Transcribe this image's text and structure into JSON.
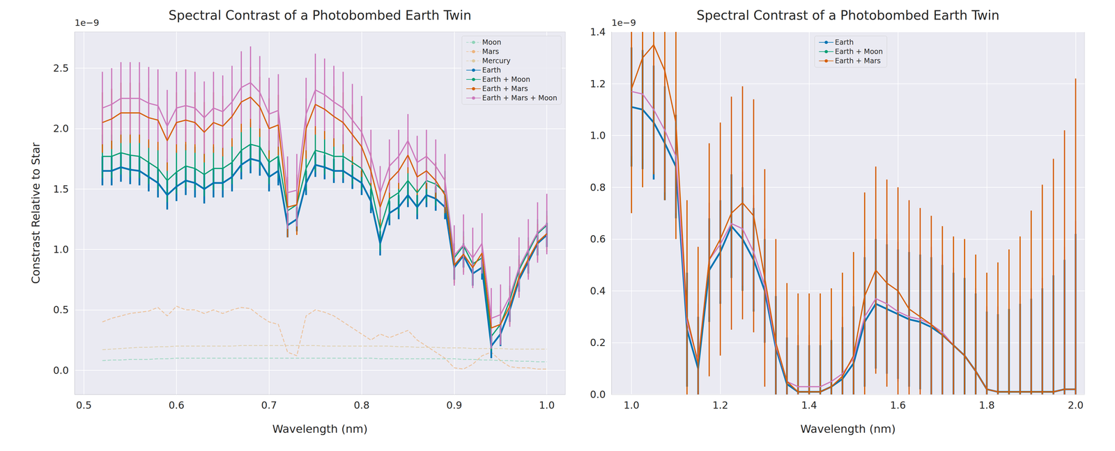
{
  "chart_data": [
    {
      "type": "line",
      "title": "Spectral Contrast of a Photobombed Earth Twin",
      "xlabel": "Wavelength (nm)",
      "ylabel": "Constrast Relative to Star",
      "annotations": [
        "1e−9"
      ],
      "grid": true,
      "legend": "upper right",
      "xlim": [
        0.49,
        1.02
      ],
      "ylim": [
        -0.2,
        2.8
      ],
      "xticks": [
        0.5,
        0.6,
        0.7,
        0.8,
        0.9,
        {
          "value": 1.0,
          "label": "1.0"
        }
      ],
      "yticks": [
        {
          "value": 0,
          "label": "0.0"
        },
        0.5,
        {
          "value": 1,
          "label": "1.0"
        },
        1.5,
        {
          "value": 2,
          "label": "2.0"
        },
        2.5
      ],
      "x": [
        0.52,
        0.53,
        0.54,
        0.55,
        0.56,
        0.57,
        0.58,
        0.59,
        0.6,
        0.61,
        0.62,
        0.63,
        0.64,
        0.65,
        0.66,
        0.67,
        0.68,
        0.69,
        0.7,
        0.71,
        0.72,
        0.73,
        0.74,
        0.75,
        0.76,
        0.77,
        0.78,
        0.79,
        0.8,
        0.81,
        0.82,
        0.83,
        0.84,
        0.85,
        0.86,
        0.87,
        0.88,
        0.89,
        0.9,
        0.91,
        0.92,
        0.93,
        0.94,
        0.95,
        0.96,
        0.97,
        0.98,
        0.99,
        1.0
      ],
      "series": [
        {
          "name": "Moon",
          "color": "#8fd3b8",
          "line_style": "dashed",
          "values": [
            0.08,
            0.085,
            0.085,
            0.09,
            0.09,
            0.09,
            0.095,
            0.095,
            0.1,
            0.1,
            0.1,
            0.1,
            0.1,
            0.1,
            0.1,
            0.1,
            0.1,
            0.1,
            0.1,
            0.1,
            0.1,
            0.1,
            0.1,
            0.1,
            0.1,
            0.1,
            0.1,
            0.1,
            0.1,
            0.1,
            0.095,
            0.095,
            0.095,
            0.095,
            0.095,
            0.095,
            0.095,
            0.095,
            0.095,
            0.09,
            0.09,
            0.085,
            0.085,
            0.08,
            0.08,
            0.075,
            0.075,
            0.07,
            0.07
          ]
        },
        {
          "name": "Mars",
          "color": "#ecb47e",
          "line_style": "dashed",
          "values": [
            0.4,
            0.43,
            0.45,
            0.47,
            0.48,
            0.49,
            0.52,
            0.45,
            0.53,
            0.5,
            0.5,
            0.47,
            0.5,
            0.47,
            0.5,
            0.52,
            0.51,
            0.45,
            0.4,
            0.38,
            0.15,
            0.12,
            0.45,
            0.5,
            0.48,
            0.45,
            0.4,
            0.35,
            0.3,
            0.25,
            0.3,
            0.27,
            0.3,
            0.33,
            0.25,
            0.2,
            0.15,
            0.1,
            0.02,
            0.01,
            0.05,
            0.12,
            0.15,
            0.08,
            0.03,
            0.02,
            0.02,
            0.01,
            0.01
          ]
        },
        {
          "name": "Mercury",
          "color": "#dcc9a0",
          "line_style": "dashed",
          "values": [
            0.17,
            0.175,
            0.18,
            0.185,
            0.19,
            0.19,
            0.195,
            0.195,
            0.2,
            0.2,
            0.2,
            0.2,
            0.2,
            0.2,
            0.2,
            0.205,
            0.205,
            0.205,
            0.205,
            0.205,
            0.205,
            0.205,
            0.205,
            0.205,
            0.2,
            0.2,
            0.2,
            0.2,
            0.2,
            0.2,
            0.2,
            0.2,
            0.195,
            0.195,
            0.19,
            0.19,
            0.19,
            0.185,
            0.185,
            0.185,
            0.18,
            0.18,
            0.18,
            0.18,
            0.175,
            0.175,
            0.175,
            0.175,
            0.175
          ]
        },
        {
          "name": "Earth",
          "color": "#0173b2",
          "line_style": "solid",
          "values": [
            1.65,
            1.65,
            1.68,
            1.66,
            1.65,
            1.6,
            1.55,
            1.45,
            1.52,
            1.57,
            1.55,
            1.5,
            1.55,
            1.55,
            1.6,
            1.7,
            1.75,
            1.73,
            1.6,
            1.65,
            1.2,
            1.25,
            1.55,
            1.7,
            1.68,
            1.65,
            1.65,
            1.6,
            1.55,
            1.4,
            1.05,
            1.3,
            1.35,
            1.45,
            1.35,
            1.45,
            1.42,
            1.35,
            0.85,
            0.95,
            0.8,
            0.85,
            0.2,
            0.3,
            0.5,
            0.75,
            0.9,
            1.05,
            1.12
          ],
          "errors": [
            0.12,
            0.12,
            0.12,
            0.12,
            0.12,
            0.12,
            0.12,
            0.12,
            0.12,
            0.12,
            0.12,
            0.12,
            0.12,
            0.12,
            0.12,
            0.12,
            0.12,
            0.12,
            0.12,
            0.12,
            0.1,
            0.1,
            0.1,
            0.1,
            0.1,
            0.1,
            0.1,
            0.1,
            0.1,
            0.1,
            0.1,
            0.1,
            0.1,
            0.1,
            0.1,
            0.1,
            0.1,
            0.1,
            0.1,
            0.1,
            0.1,
            0.1,
            0.1,
            0.1,
            0.1,
            0.1,
            0.1,
            0.1,
            0.1
          ]
        },
        {
          "name": "Earth + Moon",
          "color": "#029e73",
          "line_style": "solid",
          "values": [
            1.77,
            1.77,
            1.8,
            1.78,
            1.77,
            1.72,
            1.67,
            1.57,
            1.64,
            1.69,
            1.67,
            1.62,
            1.67,
            1.67,
            1.72,
            1.82,
            1.87,
            1.85,
            1.72,
            1.77,
            1.32,
            1.37,
            1.67,
            1.82,
            1.8,
            1.77,
            1.77,
            1.72,
            1.67,
            1.52,
            1.17,
            1.42,
            1.47,
            1.57,
            1.47,
            1.57,
            1.54,
            1.47,
            0.93,
            1.03,
            0.88,
            0.93,
            0.28,
            0.38,
            0.58,
            0.83,
            0.98,
            1.13,
            1.2
          ],
          "errors": [
            0.18,
            0.18,
            0.18,
            0.18,
            0.18,
            0.18,
            0.18,
            0.18,
            0.18,
            0.18,
            0.18,
            0.18,
            0.18,
            0.18,
            0.18,
            0.18,
            0.18,
            0.18,
            0.18,
            0.18,
            0.18,
            0.18,
            0.18,
            0.18,
            0.18,
            0.18,
            0.18,
            0.18,
            0.18,
            0.18,
            0.18,
            0.18,
            0.18,
            0.18,
            0.18,
            0.18,
            0.18,
            0.18,
            0.12,
            0.12,
            0.12,
            0.12,
            0.12,
            0.12,
            0.12,
            0.12,
            0.12,
            0.12,
            0.12
          ]
        },
        {
          "name": "Earth + Mars",
          "color": "#d55e00",
          "line_style": "solid",
          "values": [
            2.05,
            2.08,
            2.13,
            2.13,
            2.13,
            2.09,
            2.07,
            1.9,
            2.05,
            2.07,
            2.05,
            1.97,
            2.05,
            2.02,
            2.1,
            2.22,
            2.26,
            2.18,
            2.0,
            2.03,
            1.35,
            1.37,
            2.0,
            2.2,
            2.16,
            2.1,
            2.05,
            1.95,
            1.85,
            1.65,
            1.35,
            1.57,
            1.65,
            1.78,
            1.6,
            1.65,
            1.57,
            1.45,
            0.87,
            0.96,
            0.85,
            0.97,
            0.35,
            0.38,
            0.53,
            0.77,
            0.92,
            1.06,
            1.13
          ],
          "errors": [
            0.25,
            0.25,
            0.25,
            0.25,
            0.25,
            0.25,
            0.25,
            0.25,
            0.25,
            0.25,
            0.25,
            0.25,
            0.25,
            0.25,
            0.25,
            0.25,
            0.25,
            0.25,
            0.25,
            0.25,
            0.25,
            0.25,
            0.25,
            0.25,
            0.25,
            0.25,
            0.25,
            0.25,
            0.25,
            0.15,
            0.15,
            0.15,
            0.15,
            0.15,
            0.15,
            0.15,
            0.15,
            0.15,
            0.15,
            0.15,
            0.15,
            0.15,
            0.15,
            0.15,
            0.15,
            0.15,
            0.15,
            0.15,
            0.15
          ]
        },
        {
          "name": "Earth + Mars + Moon",
          "color": "#cc78bc",
          "line_style": "solid",
          "values": [
            2.17,
            2.2,
            2.25,
            2.25,
            2.25,
            2.21,
            2.19,
            2.02,
            2.17,
            2.19,
            2.17,
            2.09,
            2.17,
            2.14,
            2.22,
            2.34,
            2.38,
            2.3,
            2.12,
            2.15,
            1.47,
            1.49,
            2.12,
            2.32,
            2.28,
            2.22,
            2.17,
            2.07,
            1.97,
            1.77,
            1.47,
            1.69,
            1.77,
            1.9,
            1.72,
            1.77,
            1.69,
            1.57,
            0.95,
            1.04,
            0.93,
            1.05,
            0.43,
            0.46,
            0.61,
            0.85,
            1.0,
            1.14,
            1.21
          ],
          "errors": [
            0.3,
            0.3,
            0.3,
            0.3,
            0.3,
            0.3,
            0.3,
            0.3,
            0.3,
            0.3,
            0.3,
            0.3,
            0.3,
            0.3,
            0.3,
            0.3,
            0.3,
            0.3,
            0.3,
            0.3,
            0.3,
            0.3,
            0.3,
            0.3,
            0.3,
            0.3,
            0.3,
            0.3,
            0.3,
            0.22,
            0.22,
            0.22,
            0.22,
            0.22,
            0.22,
            0.22,
            0.22,
            0.22,
            0.25,
            0.25,
            0.25,
            0.25,
            0.25,
            0.25,
            0.25,
            0.25,
            0.25,
            0.25,
            0.25
          ]
        }
      ]
    },
    {
      "type": "line",
      "title": "Spectral Contrast of a Photobombed Earth Twin",
      "xlabel": "Wavelength (nm)",
      "annotations": [
        "1e−9"
      ],
      "grid": true,
      "legend": "upper center",
      "xlim": [
        0.955,
        2.02
      ],
      "ylim": [
        0,
        1.4
      ],
      "xticks": [
        {
          "value": 1.0,
          "label": "1.0"
        },
        1.2,
        1.4,
        1.6,
        1.8,
        {
          "value": 2.0,
          "label": "2.0"
        }
      ],
      "yticks": [
        {
          "value": 0,
          "label": "0.0"
        },
        0.2,
        0.4,
        0.6,
        0.8,
        {
          "value": 1.0,
          "label": "1.0"
        },
        1.2,
        1.4
      ],
      "x": [
        1.0,
        1.025,
        1.05,
        1.075,
        1.1,
        1.125,
        1.15,
        1.175,
        1.2,
        1.225,
        1.25,
        1.275,
        1.3,
        1.325,
        1.35,
        1.375,
        1.4,
        1.425,
        1.45,
        1.475,
        1.5,
        1.525,
        1.55,
        1.575,
        1.6,
        1.625,
        1.65,
        1.675,
        1.7,
        1.725,
        1.75,
        1.775,
        1.8,
        1.825,
        1.85,
        1.875,
        1.9,
        1.925,
        1.95,
        1.975,
        2.0
      ],
      "series": [
        {
          "name": "Earth",
          "color": "#0173b2",
          "line_style": "solid",
          "values": [
            1.11,
            1.1,
            1.05,
            0.97,
            0.88,
            0.25,
            0.1,
            0.48,
            0.55,
            0.65,
            0.6,
            0.52,
            0.4,
            0.18,
            0.04,
            0.01,
            0.01,
            0.01,
            0.03,
            0.06,
            0.12,
            0.28,
            0.35,
            0.33,
            0.31,
            0.29,
            0.28,
            0.26,
            0.23,
            0.19,
            0.15,
            0.09,
            0.02,
            0.01,
            0.01,
            0.01,
            0.01,
            0.01,
            0.01,
            0.02,
            0.02
          ],
          "errors": [
            0.23,
            0.23,
            0.22,
            0.22,
            0.2,
            0.22,
            0.2,
            0.2,
            0.2,
            0.2,
            0.2,
            0.2,
            0.2,
            0.2,
            0.18,
            0.18,
            0.18,
            0.18,
            0.18,
            0.2,
            0.22,
            0.25,
            0.25,
            0.25,
            0.25,
            0.26,
            0.26,
            0.27,
            0.27,
            0.28,
            0.3,
            0.3,
            0.3,
            0.3,
            0.32,
            0.34,
            0.36,
            0.4,
            0.45,
            0.5,
            0.6
          ]
        },
        {
          "name": "Earth + Moon",
          "color": "#cc78bc",
          "line_style": "solid",
          "values": [
            1.17,
            1.16,
            1.1,
            1.02,
            0.92,
            0.28,
            0.13,
            0.52,
            0.58,
            0.66,
            0.64,
            0.55,
            0.42,
            0.19,
            0.05,
            0.03,
            0.03,
            0.03,
            0.05,
            0.08,
            0.14,
            0.3,
            0.37,
            0.35,
            0.32,
            0.3,
            0.29,
            0.27,
            0.24,
            0.19,
            0.15,
            0.09,
            0.02,
            0.01,
            0.01,
            0.01,
            0.01,
            0.01,
            0.01,
            0.02,
            0.02
          ],
          "errors": [
            0.25,
            0.25,
            0.24,
            0.24,
            0.22,
            0.24,
            0.22,
            0.22,
            0.22,
            0.22,
            0.22,
            0.22,
            0.22,
            0.22,
            0.2,
            0.2,
            0.2,
            0.2,
            0.2,
            0.22,
            0.24,
            0.27,
            0.27,
            0.27,
            0.27,
            0.28,
            0.28,
            0.3,
            0.3,
            0.3,
            0.32,
            0.32,
            0.32,
            0.33,
            0.35,
            0.37,
            0.4,
            0.44,
            0.5,
            0.55,
            0.65
          ]
        },
        {
          "name": "Earth + Mars",
          "color": "#d55e00",
          "line_style": "solid",
          "values": [
            1.18,
            1.3,
            1.35,
            1.25,
            1.05,
            0.3,
            0.12,
            0.52,
            0.6,
            0.7,
            0.74,
            0.69,
            0.45,
            0.2,
            0.05,
            0.01,
            0.01,
            0.01,
            0.03,
            0.07,
            0.15,
            0.38,
            0.48,
            0.43,
            0.4,
            0.33,
            0.3,
            0.27,
            0.23,
            0.19,
            0.15,
            0.09,
            0.02,
            0.01,
            0.01,
            0.01,
            0.01,
            0.01,
            0.01,
            0.02,
            0.02
          ],
          "errors": [
            0.48,
            0.5,
            0.5,
            0.5,
            0.45,
            0.45,
            0.45,
            0.45,
            0.45,
            0.45,
            0.45,
            0.45,
            0.42,
            0.4,
            0.38,
            0.38,
            0.38,
            0.38,
            0.38,
            0.4,
            0.4,
            0.4,
            0.4,
            0.4,
            0.4,
            0.42,
            0.42,
            0.42,
            0.42,
            0.42,
            0.45,
            0.45,
            0.45,
            0.5,
            0.55,
            0.6,
            0.7,
            0.8,
            0.9,
            1.0,
            1.2
          ]
        }
      ]
    }
  ]
}
